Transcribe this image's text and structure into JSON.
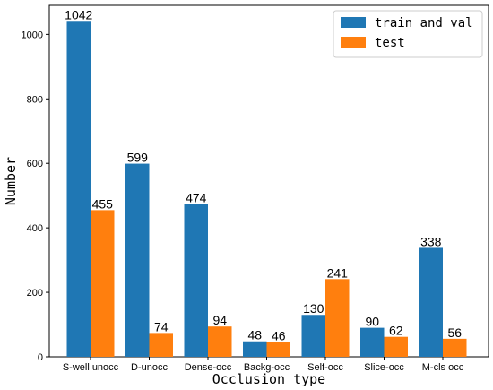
{
  "chart_data": {
    "type": "bar",
    "title": "",
    "xlabel": "Occlusion type",
    "ylabel": "Number",
    "categories": [
      "S-well unocc",
      "D-unocc",
      "Dense-occ",
      "Backg-occ",
      "Self-occ",
      "Slice-occ",
      "M-cls occ"
    ],
    "series": [
      {
        "name": "train and val",
        "color": "#1f77b4",
        "values": [
          1042,
          599,
          474,
          48,
          130,
          90,
          338
        ]
      },
      {
        "name": "test",
        "color": "#ff7f0e",
        "values": [
          455,
          74,
          94,
          46,
          241,
          62,
          56
        ]
      }
    ],
    "ylim": [
      0,
      1090
    ],
    "yticks": [
      0,
      200,
      400,
      600,
      800,
      1000
    ],
    "grid": false,
    "legend_position": "top-right"
  }
}
